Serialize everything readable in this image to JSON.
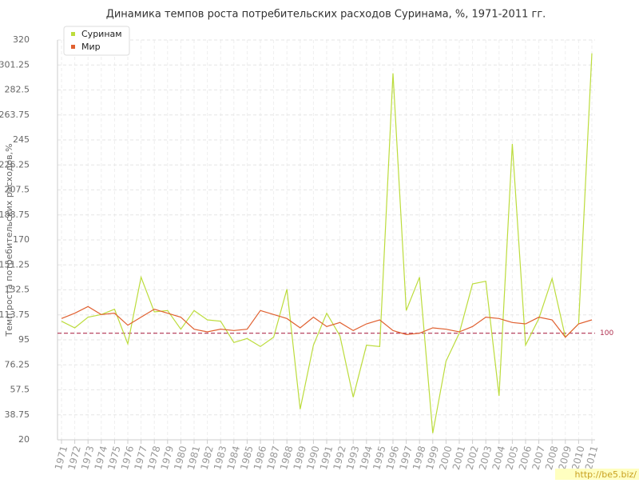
{
  "chart_data": {
    "type": "line",
    "title": "Динамика темпов роста потребительских расходов Суринама, %, 1971-2011 гг.",
    "y_label": "Темп роста потребительских расходов,%",
    "categories": [
      "1971",
      "1972",
      "1973",
      "1974",
      "1975",
      "1976",
      "1977",
      "1978",
      "1979",
      "1980",
      "1981",
      "1982",
      "1983",
      "1984",
      "1985",
      "1986",
      "1987",
      "1988",
      "1989",
      "1990",
      "1991",
      "1992",
      "1993",
      "1994",
      "1995",
      "1996",
      "1997",
      "1998",
      "1999",
      "2000",
      "2001",
      "2002",
      "2003",
      "2004",
      "2005",
      "2006",
      "2007",
      "2008",
      "2009",
      "2010",
      "2011"
    ],
    "series": [
      {
        "name": "Суринам",
        "color": "#bcdc3c",
        "values": [
          109,
          104,
          112,
          114,
          118,
          92,
          142,
          116,
          117,
          103,
          117,
          110,
          109,
          93,
          96,
          90,
          97,
          133,
          43,
          91,
          115,
          98,
          52,
          91,
          90,
          295,
          117,
          142,
          25,
          79,
          100,
          137,
          139,
          53,
          242,
          91,
          111,
          141,
          97,
          107,
          310
        ]
      },
      {
        "name": "Мир",
        "color": "#e06030",
        "values": [
          111,
          115,
          120,
          114,
          115,
          106,
          112,
          118,
          115,
          112,
          103,
          101,
          103,
          102,
          103,
          117,
          114,
          111,
          104,
          112,
          105,
          108,
          102,
          107,
          110,
          102,
          99,
          100,
          104,
          103,
          101,
          105,
          112,
          111,
          108,
          107,
          112,
          110,
          97,
          107,
          110
        ]
      }
    ],
    "ylim": [
      20,
      320
    ],
    "yticks": [
      20,
      38.75,
      57.5,
      76.25,
      95,
      113.75,
      132.5,
      151.25,
      170,
      188.75,
      207.5,
      226.25,
      245,
      263.75,
      282.5,
      301.25,
      320
    ],
    "reference_line": 100,
    "grid": true,
    "legend": "top-left",
    "watermark": "http://be5.biz/"
  }
}
